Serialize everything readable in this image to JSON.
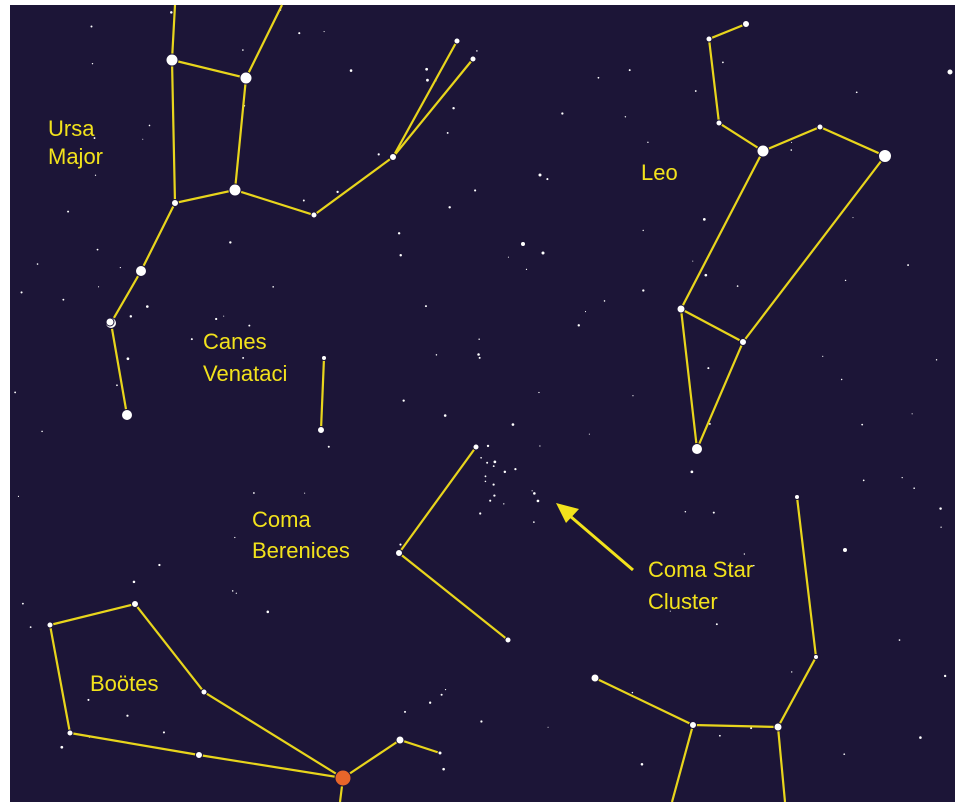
{
  "labels": {
    "ursa_major": [
      "Ursa",
      "Major"
    ],
    "leo": [
      "Leo"
    ],
    "canes_venatici": [
      "Canes",
      "Venataci"
    ],
    "coma_berenices": [
      "Coma",
      "Berenices"
    ],
    "coma_star_cluster": [
      "Coma Star",
      "Cluster"
    ],
    "bootes": [
      "Boötes"
    ]
  }
}
